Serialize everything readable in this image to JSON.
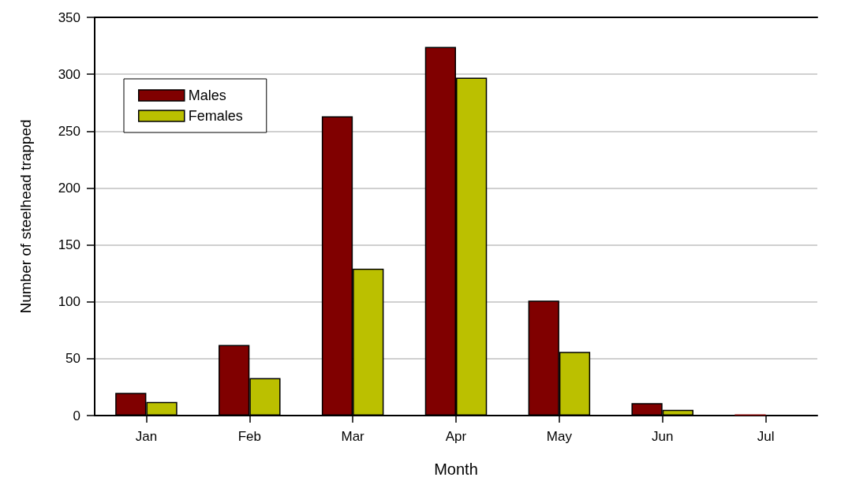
{
  "chart_data": {
    "type": "bar",
    "xlabel": "Month",
    "ylabel": "Number of steelhead trapped",
    "categories": [
      "Jan",
      "Feb",
      "Mar",
      "Apr",
      "May",
      "Jun",
      "Jul"
    ],
    "series": [
      {
        "name": "Males",
        "color": "#800000",
        "values": [
          20,
          62,
          263,
          324,
          101,
          11,
          1
        ]
      },
      {
        "name": "Females",
        "color": "#bbc000",
        "values": [
          12,
          33,
          129,
          297,
          56,
          5,
          0
        ]
      }
    ],
    "ylim": [
      0,
      350
    ],
    "yticks": [
      0,
      50,
      100,
      150,
      200,
      250,
      300,
      350
    ],
    "grid": "y",
    "legend": "top left"
  }
}
